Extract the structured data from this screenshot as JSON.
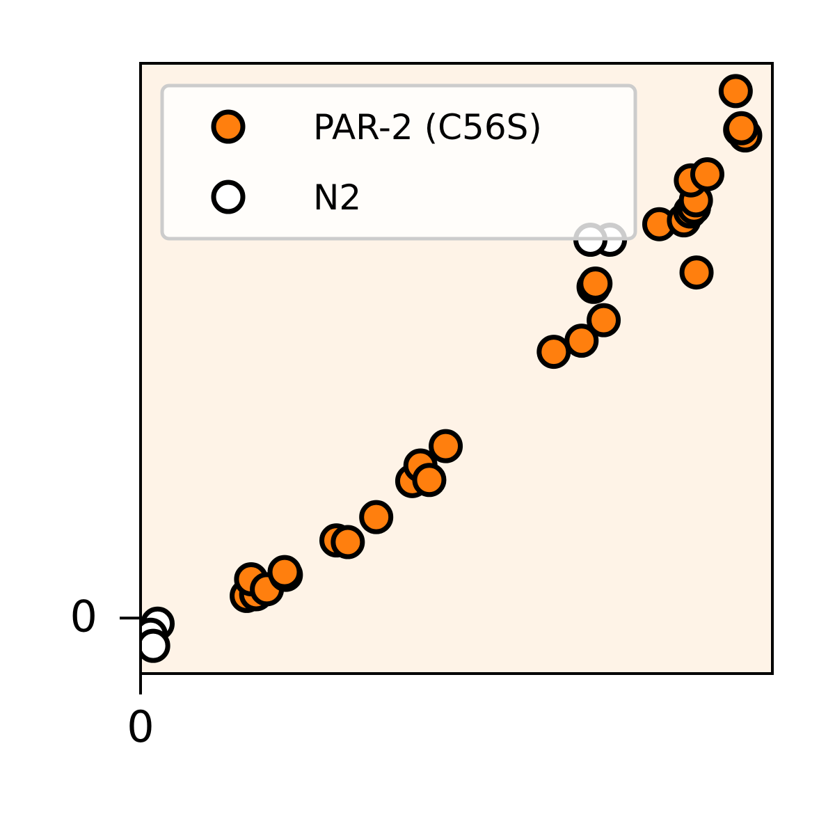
{
  "chart_data": {
    "type": "scatter",
    "title": "",
    "xlabel": "",
    "ylabel": "",
    "xlim": [
      0,
      1
    ],
    "ylim": [
      -0.1,
      1
    ],
    "x_ticks": [
      {
        "value": 0,
        "label": "0"
      }
    ],
    "y_ticks": [
      {
        "value": 0,
        "label": "0"
      }
    ],
    "grid": false,
    "legend": "upper-left",
    "plot_background": "#fef3e7",
    "series": [
      {
        "name": "PAR-2 (C56S)",
        "marker": "filled-circle",
        "color": "#ff7f0e",
        "points": [
          {
            "x": 0.168,
            "y": 0.04
          },
          {
            "x": 0.183,
            "y": 0.043
          },
          {
            "x": 0.175,
            "y": 0.07
          },
          {
            "x": 0.2,
            "y": 0.052
          },
          {
            "x": 0.23,
            "y": 0.078
          },
          {
            "x": 0.228,
            "y": 0.083
          },
          {
            "x": 0.31,
            "y": 0.14
          },
          {
            "x": 0.328,
            "y": 0.137
          },
          {
            "x": 0.373,
            "y": 0.182
          },
          {
            "x": 0.43,
            "y": 0.247
          },
          {
            "x": 0.443,
            "y": 0.275
          },
          {
            "x": 0.457,
            "y": 0.249
          },
          {
            "x": 0.483,
            "y": 0.31
          },
          {
            "x": 0.654,
            "y": 0.48
          },
          {
            "x": 0.698,
            "y": 0.5
          },
          {
            "x": 0.733,
            "y": 0.537
          },
          {
            "x": 0.717,
            "y": 0.597
          },
          {
            "x": 0.72,
            "y": 0.603
          },
          {
            "x": 0.821,
            "y": 0.71
          },
          {
            "x": 0.86,
            "y": 0.717
          },
          {
            "x": 0.87,
            "y": 0.733
          },
          {
            "x": 0.876,
            "y": 0.74
          },
          {
            "x": 0.879,
            "y": 0.753
          },
          {
            "x": 0.871,
            "y": 0.789
          },
          {
            "x": 0.897,
            "y": 0.8
          },
          {
            "x": 0.88,
            "y": 0.623
          },
          {
            "x": 0.942,
            "y": 0.95
          },
          {
            "x": 0.949,
            "y": 0.88
          },
          {
            "x": 0.957,
            "y": 0.87
          },
          {
            "x": 0.951,
            "y": 0.883
          }
        ]
      },
      {
        "name": "N2",
        "marker": "open-circle",
        "color": "#ffffff",
        "points": [
          {
            "x": 0.027,
            "y": -0.01
          },
          {
            "x": 0.016,
            "y": -0.03
          },
          {
            "x": 0.02,
            "y": -0.05
          },
          {
            "x": 0.743,
            "y": 0.682
          },
          {
            "x": 0.712,
            "y": 0.682
          }
        ]
      }
    ]
  }
}
